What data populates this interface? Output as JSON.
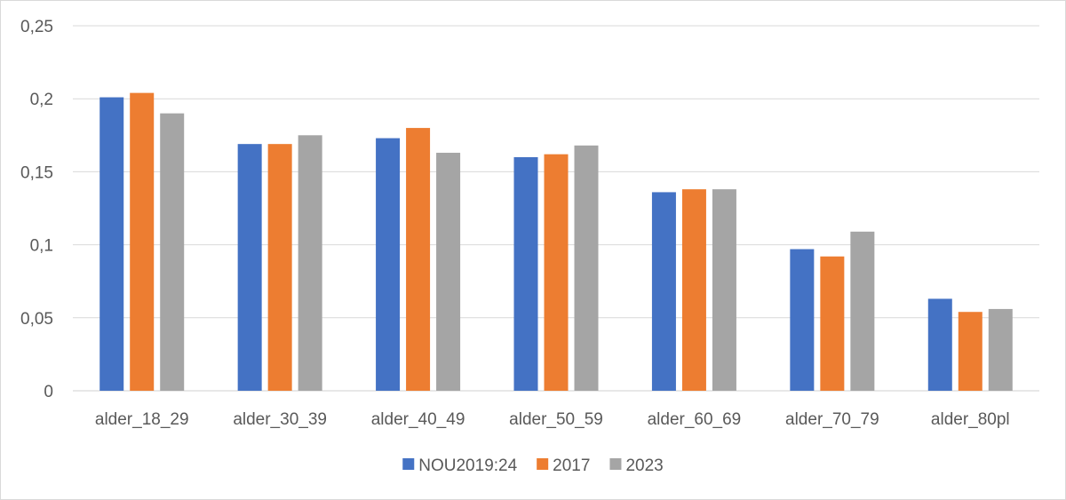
{
  "chart_data": {
    "type": "bar",
    "title": "",
    "xlabel": "",
    "ylabel": "",
    "ylim": [
      0,
      0.25
    ],
    "yticks": [
      "0",
      "0,05",
      "0,1",
      "0,15",
      "0,2",
      "0,25"
    ],
    "grid": true,
    "legend_position": "bottom",
    "categories": [
      "alder_18_29",
      "alder_30_39",
      "alder_40_49",
      "alder_50_59",
      "alder_60_69",
      "alder_70_79",
      "alder_80pl"
    ],
    "series": [
      {
        "name": "NOU2019:24",
        "color": "#4472c4",
        "values": [
          0.201,
          0.169,
          0.173,
          0.16,
          0.136,
          0.097,
          0.063
        ]
      },
      {
        "name": "2017",
        "color": "#ed7d31",
        "values": [
          0.204,
          0.169,
          0.18,
          0.162,
          0.138,
          0.092,
          0.054
        ]
      },
      {
        "name": "2023",
        "color": "#a5a5a5",
        "values": [
          0.19,
          0.175,
          0.163,
          0.168,
          0.138,
          0.109,
          0.056
        ]
      }
    ]
  }
}
